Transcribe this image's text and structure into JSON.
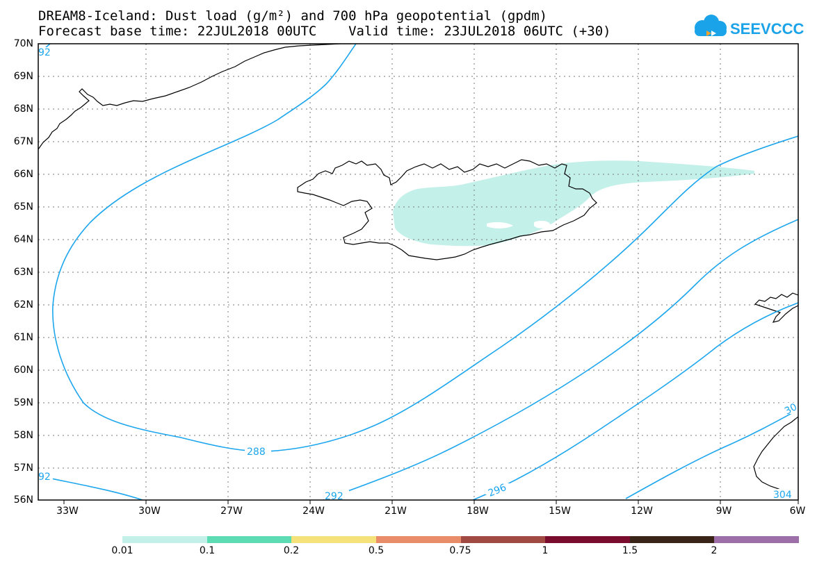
{
  "header": {
    "title_line1": "DREAM8-Iceland: Dust load (g/m²) and 700 hPa geopotential (gpdm)",
    "title_line2": "Forecast base time: 22JUL2018 00UTC    Valid time: 23JUL2018 06UTC (+30)",
    "logo_text": "SEEVCCC"
  },
  "map": {
    "lat_labels": [
      "70N",
      "69N",
      "68N",
      "67N",
      "66N",
      "65N",
      "64N",
      "63N",
      "62N",
      "61N",
      "60N",
      "59N",
      "58N",
      "57N",
      "56N"
    ],
    "lon_labels": [
      "33W",
      "30W",
      "27W",
      "24W",
      "21W",
      "18W",
      "15W",
      "12W",
      "9W",
      "6W"
    ],
    "contour_labels": [
      "92",
      "288",
      "292",
      "296",
      "92",
      "30",
      "304"
    ],
    "contour_color": "#1ca6ee",
    "dust_color": "#c4f0ea"
  },
  "legend": {
    "colors": [
      "#c4f0ea",
      "#5ddcb4",
      "#f5e27a",
      "#e88c6a",
      "#a14a44",
      "#7a0c2e",
      "#3a2418",
      "#9c6fa8"
    ],
    "labels": [
      "0.01",
      "0.1",
      "0.2",
      "0.5",
      "0.75",
      "1",
      "1.5",
      "2"
    ]
  }
}
